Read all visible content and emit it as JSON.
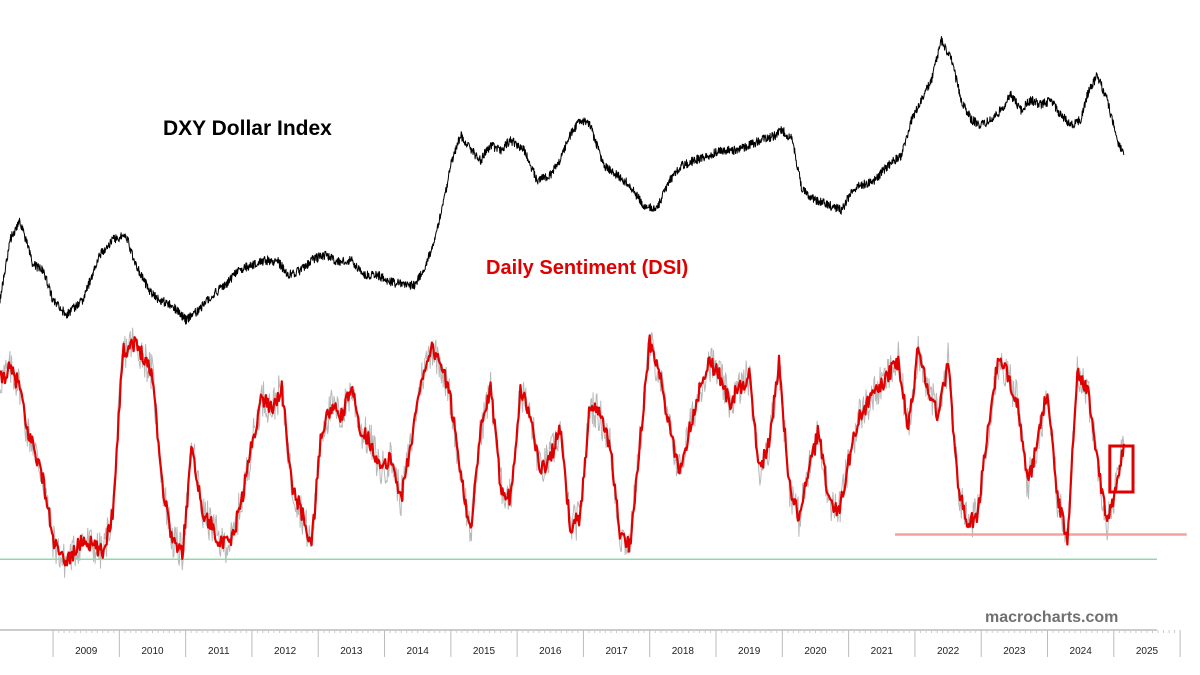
{
  "chart_data": {
    "type": "line",
    "title": "",
    "x_axis": {
      "tick_labels": [
        "2009",
        "2010",
        "2011",
        "2012",
        "2013",
        "2014",
        "2015",
        "2016",
        "2017",
        "2018",
        "2019",
        "2020",
        "2021",
        "2022",
        "2023",
        "2024",
        "2025"
      ],
      "range": [
        2008.2,
        2026.3
      ]
    },
    "series": [
      {
        "name": "DXY Dollar Index",
        "color": "#000000",
        "scale": "upper panel, left-to-right price index",
        "x": [
          2008.2,
          2008.35,
          2008.5,
          2008.7,
          2008.85,
          2009.0,
          2009.2,
          2009.45,
          2009.7,
          2009.9,
          2010.1,
          2010.25,
          2010.45,
          2010.6,
          2010.8,
          2011.0,
          2011.2,
          2011.4,
          2011.6,
          2011.8,
          2012.0,
          2012.2,
          2012.4,
          2012.55,
          2012.75,
          2012.9,
          2013.1,
          2013.3,
          2013.5,
          2013.7,
          2013.9,
          2014.1,
          2014.3,
          2014.45,
          2014.6,
          2014.75,
          2014.9,
          2015.0,
          2015.15,
          2015.3,
          2015.45,
          2015.6,
          2015.75,
          2015.9,
          2016.1,
          2016.3,
          2016.5,
          2016.65,
          2016.8,
          2016.95,
          2017.1,
          2017.3,
          2017.5,
          2017.7,
          2017.9,
          2018.1,
          2018.3,
          2018.5,
          2018.7,
          2018.9,
          2019.1,
          2019.3,
          2019.5,
          2019.7,
          2019.9,
          2020.0,
          2020.15,
          2020.3,
          2020.5,
          2020.7,
          2020.9,
          2021.05,
          2021.2,
          2021.4,
          2021.6,
          2021.8,
          2021.95,
          2022.1,
          2022.25,
          2022.4,
          2022.55,
          2022.7,
          2022.85,
          2023.0,
          2023.15,
          2023.3,
          2023.45,
          2023.6,
          2023.75,
          2023.9,
          2024.05,
          2024.2,
          2024.35,
          2024.5,
          2024.6,
          2024.75,
          2024.9,
          2025.05,
          2025.15
        ],
        "y": [
          300,
          240,
          220,
          265,
          270,
          300,
          315,
          300,
          255,
          240,
          235,
          265,
          290,
          300,
          305,
          320,
          310,
          295,
          285,
          270,
          265,
          260,
          262,
          275,
          270,
          260,
          255,
          262,
          260,
          275,
          275,
          282,
          285,
          285,
          270,
          240,
          200,
          165,
          135,
          150,
          160,
          145,
          150,
          140,
          150,
          180,
          175,
          160,
          135,
          120,
          125,
          165,
          175,
          185,
          205,
          210,
          180,
          165,
          160,
          155,
          150,
          150,
          145,
          140,
          135,
          130,
          140,
          190,
          200,
          205,
          210,
          190,
          185,
          180,
          165,
          155,
          120,
          100,
          80,
          40,
          60,
          100,
          120,
          125,
          120,
          110,
          95,
          110,
          100,
          105,
          100,
          115,
          125,
          120,
          95,
          75,
          100,
          140,
          155
        ]
      },
      {
        "name": "Daily Sentiment (DSI)",
        "color": "#e00000",
        "scale": "lower panel, 0-100 bullish %",
        "x": [
          2008.2,
          2008.35,
          2008.5,
          2008.6,
          2008.7,
          2008.85,
          2009.0,
          2009.15,
          2009.3,
          2009.45,
          2009.6,
          2009.75,
          2009.9,
          2010.05,
          2010.2,
          2010.35,
          2010.5,
          2010.65,
          2010.8,
          2010.95,
          2011.1,
          2011.25,
          2011.4,
          2011.55,
          2011.7,
          2011.85,
          2012.0,
          2012.15,
          2012.3,
          2012.45,
          2012.6,
          2012.75,
          2012.9,
          2013.05,
          2013.2,
          2013.35,
          2013.5,
          2013.65,
          2013.8,
          2013.95,
          2014.1,
          2014.25,
          2014.4,
          2014.55,
          2014.7,
          2014.85,
          2015.0,
          2015.15,
          2015.3,
          2015.45,
          2015.6,
          2015.75,
          2015.9,
          2016.05,
          2016.2,
          2016.35,
          2016.5,
          2016.65,
          2016.8,
          2016.95,
          2017.1,
          2017.25,
          2017.4,
          2017.55,
          2017.7,
          2017.85,
          2018.0,
          2018.15,
          2018.3,
          2018.45,
          2018.6,
          2018.75,
          2018.9,
          2019.05,
          2019.2,
          2019.35,
          2019.5,
          2019.65,
          2019.8,
          2019.95,
          2020.1,
          2020.25,
          2020.4,
          2020.55,
          2020.7,
          2020.85,
          2021.0,
          2021.15,
          2021.3,
          2021.45,
          2021.6,
          2021.75,
          2021.9,
          2022.05,
          2022.2,
          2022.35,
          2022.5,
          2022.65,
          2022.8,
          2022.95,
          2023.1,
          2023.25,
          2023.4,
          2023.55,
          2023.7,
          2023.85,
          2024.0,
          2024.15,
          2024.3,
          2024.45,
          2024.6,
          2024.75,
          2024.9,
          2025.05,
          2025.15
        ],
        "y": [
          78,
          82,
          76,
          60,
          55,
          42,
          20,
          12,
          15,
          20,
          18,
          15,
          30,
          88,
          92,
          88,
          80,
          40,
          20,
          15,
          55,
          30,
          25,
          18,
          20,
          35,
          55,
          72,
          68,
          75,
          40,
          30,
          18,
          60,
          68,
          65,
          75,
          60,
          55,
          45,
          50,
          35,
          55,
          78,
          90,
          85,
          70,
          45,
          22,
          60,
          75,
          40,
          35,
          75,
          65,
          45,
          50,
          60,
          25,
          28,
          70,
          65,
          55,
          22,
          18,
          55,
          92,
          80,
          60,
          45,
          60,
          75,
          85,
          80,
          70,
          75,
          80,
          45,
          55,
          85,
          40,
          28,
          45,
          60,
          35,
          30,
          48,
          65,
          70,
          75,
          80,
          85,
          60,
          90,
          75,
          65,
          85,
          40,
          25,
          30,
          60,
          85,
          80,
          70,
          40,
          55,
          75,
          35,
          20,
          82,
          75,
          50,
          25,
          42,
          55
        ]
      }
    ],
    "reference_lines": [
      {
        "label": "",
        "color": "#90d8a8",
        "value_dsi": 13,
        "span": "full"
      },
      {
        "label": "",
        "color": "#f4a0a0",
        "value_dsi": 22,
        "span": [
          2021.7,
          2026.1
        ]
      }
    ],
    "annotations": [
      {
        "type": "highlight-box",
        "color": "#e00000",
        "x_range": [
          2025.0,
          2025.35
        ]
      }
    ],
    "grid": false,
    "legend": "none"
  },
  "labels": {
    "dxy": "DXY Dollar Index",
    "dsi": "Daily Sentiment (DSI)",
    "watermark": "macrocharts.com"
  },
  "colors": {
    "dxy_line": "#000000",
    "dsi_line": "#e00000",
    "dsi_shadow": "#b8b8b8",
    "green_ref": "#90d8a8",
    "pink_ref": "#f4a0a0"
  }
}
